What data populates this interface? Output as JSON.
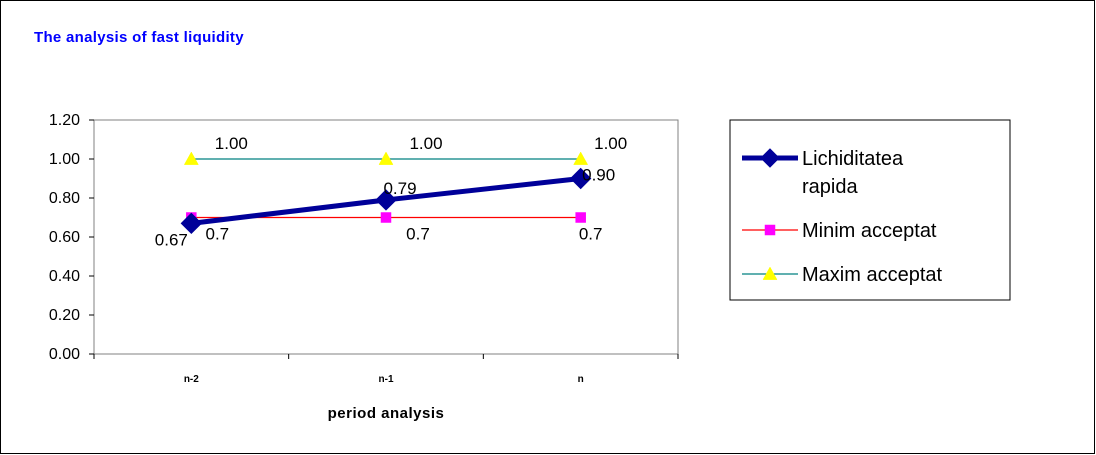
{
  "chart_data": {
    "type": "line",
    "title": "The analysis  of fast liquidity",
    "xlabel": "period analysis",
    "ylabel": "",
    "categories": [
      "n-2",
      "n-1",
      "n"
    ],
    "ylim": [
      0,
      1.2
    ],
    "yticks": [
      "0.00",
      "0.20",
      "0.40",
      "0.60",
      "0.80",
      "1.00",
      "1.20"
    ],
    "grid": false,
    "legend_position": "right",
    "series": [
      {
        "name": "Lichiditatea rapida",
        "legend_lines": [
          "Lichiditatea",
          "rapida"
        ],
        "values": [
          0.67,
          0.79,
          0.9
        ],
        "labels": [
          "0.67",
          "0.79",
          "0.90"
        ],
        "color": "#000099",
        "marker": "diamond"
      },
      {
        "name": "Minim acceptat",
        "legend_lines": [
          "Minim acceptat"
        ],
        "values": [
          0.7,
          0.7,
          0.7
        ],
        "labels": [
          "0.7",
          "0.7",
          "0.7"
        ],
        "color": "#ff0000",
        "marker_color": "#ff00ff",
        "marker": "square"
      },
      {
        "name": "Maxim acceptat",
        "legend_lines": [
          "Maxim acceptat"
        ],
        "values": [
          1.0,
          1.0,
          1.0
        ],
        "labels": [
          "1.00",
          "1.00",
          "1.00"
        ],
        "color": "#008080",
        "marker_color": "#ffff00",
        "marker": "triangle"
      }
    ],
    "title_color": "#0000ff"
  }
}
